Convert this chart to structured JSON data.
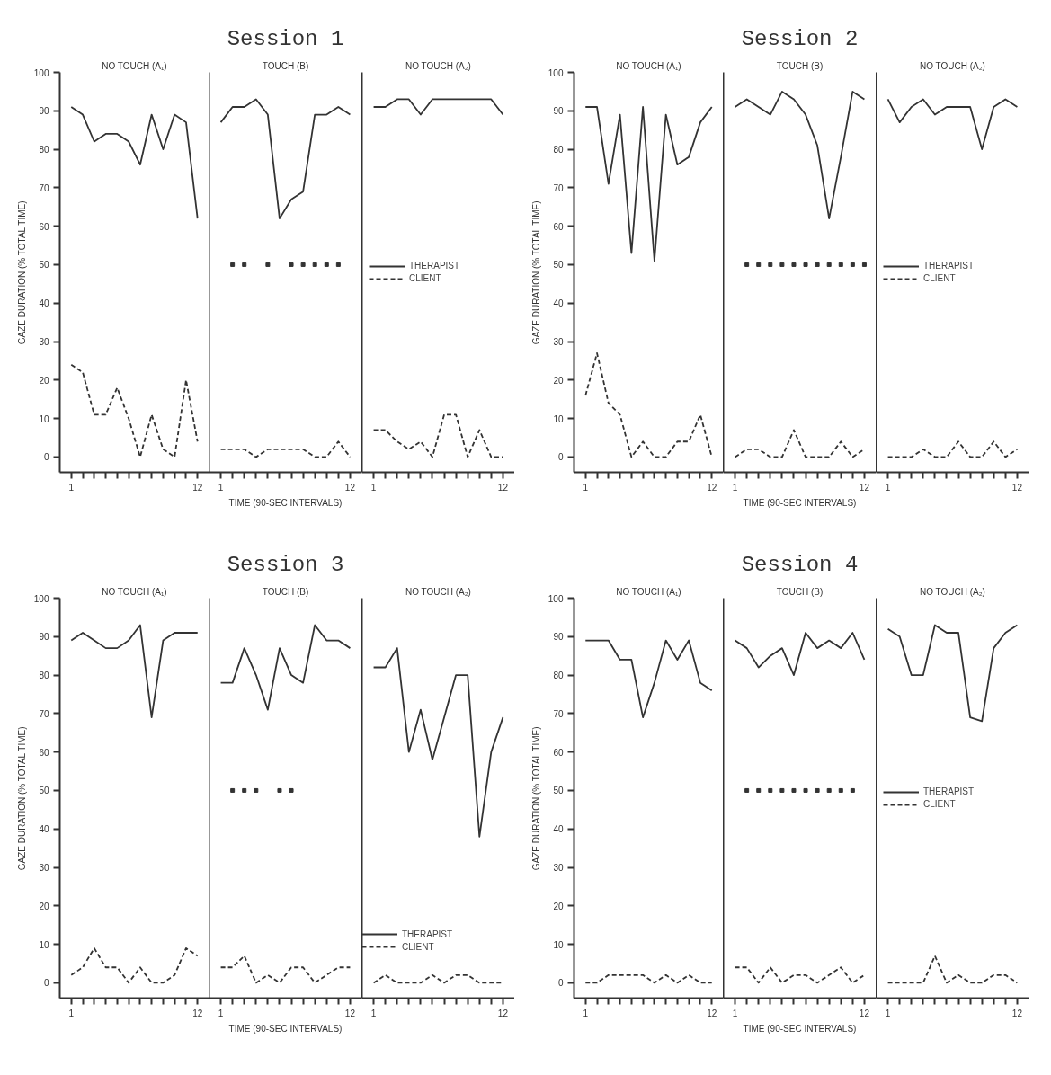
{
  "chart_data": [
    {
      "type": "line",
      "subtitle": "NO TOUCH (A₁)",
      "ylabel": "GAZE DURATION (% TOTAL TIME)",
      "xlim": [
        0,
        13
      ],
      "ylim": [
        -4,
        100
      ],
      "xticks": [
        1,
        {
          "value": 2,
          "label": null
        },
        {
          "value": 3,
          "label": null
        },
        {
          "value": 4,
          "label": null
        },
        {
          "value": 5,
          "label": null
        },
        {
          "value": 6,
          "label": null
        },
        {
          "value": 7,
          "label": null
        },
        {
          "value": 8,
          "label": null
        },
        {
          "value": 9,
          "label": null
        },
        {
          "value": 10,
          "label": null
        },
        {
          "value": 11,
          "label": null
        },
        12
      ],
      "yticks": [
        0,
        10,
        20,
        30,
        40,
        50,
        60,
        70,
        80,
        90,
        100
      ],
      "grid": false,
      "series": [
        {
          "color": "#333333",
          "line_style": "solid",
          "x": [
            1,
            2,
            3,
            4,
            5,
            6,
            7,
            8,
            9,
            10,
            11,
            12
          ],
          "values": [
            91,
            89,
            82,
            84,
            84,
            82,
            76,
            89,
            80,
            89,
            87,
            62
          ]
        },
        {
          "color": "#333333",
          "line_style": "dashed",
          "x": [
            1,
            2,
            3,
            4,
            5,
            6,
            7,
            8,
            9,
            10,
            11,
            12
          ],
          "values": [
            24,
            22,
            11,
            11,
            18,
            10,
            0,
            11,
            2,
            0,
            20,
            4
          ]
        }
      ]
    },
    {
      "type": "line",
      "title": "Session 1",
      "subtitle": "TOUCH (B)",
      "xlabel": "TIME (90-SEC INTERVALS)",
      "xlim": [
        0,
        13
      ],
      "ylim": [
        -4,
        100
      ],
      "xticks": [
        1,
        {
          "value": 2,
          "label": null
        },
        {
          "value": 3,
          "label": null
        },
        {
          "value": 4,
          "label": null
        },
        {
          "value": 5,
          "label": null
        },
        {
          "value": 6,
          "label": null
        },
        {
          "value": 7,
          "label": null
        },
        {
          "value": 8,
          "label": null
        },
        {
          "value": 9,
          "label": null
        },
        {
          "value": 10,
          "label": null
        },
        {
          "value": 11,
          "label": null
        },
        12
      ],
      "tick_labels": "x",
      "grid": false,
      "series": [
        {
          "color": "#333333",
          "line_style": "solid",
          "x": [
            1,
            2,
            3,
            4,
            5,
            6,
            7,
            8,
            9,
            10,
            11,
            12
          ],
          "values": [
            87,
            91,
            91,
            93,
            89,
            62,
            67,
            69,
            89,
            89,
            91,
            89
          ]
        },
        {
          "color": "#333333",
          "line_style": "dashed",
          "x": [
            1,
            2,
            3,
            4,
            5,
            6,
            7,
            8,
            9,
            10,
            11,
            12
          ],
          "values": [
            2,
            2,
            2,
            0,
            2,
            2,
            2,
            2,
            0,
            0,
            4,
            0
          ]
        },
        {
          "type": "scatter",
          "marker": "square",
          "color": "#333333",
          "x": [
            2,
            3,
            5,
            7,
            8,
            9,
            10,
            11
          ],
          "values": [
            50,
            50,
            50,
            50,
            50,
            50,
            50,
            50
          ]
        }
      ]
    },
    {
      "type": "line",
      "subtitle": "NO TOUCH (A₂)",
      "xlim": [
        0,
        13
      ],
      "ylim": [
        -4,
        100
      ],
      "xticks": [
        1,
        {
          "value": 2,
          "label": null
        },
        {
          "value": 3,
          "label": null
        },
        {
          "value": 4,
          "label": null
        },
        {
          "value": 5,
          "label": null
        },
        {
          "value": 6,
          "label": null
        },
        {
          "value": 7,
          "label": null
        },
        {
          "value": 8,
          "label": null
        },
        {
          "value": 9,
          "label": null
        },
        {
          "value": 10,
          "label": null
        },
        {
          "value": 11,
          "label": null
        },
        12
      ],
      "tick_labels": "x",
      "grid": false,
      "legend": "left",
      "series": [
        {
          "name": "THERAPIST",
          "color": "#333333",
          "line_style": "solid",
          "x": [
            1,
            2,
            3,
            4,
            5,
            6,
            7,
            8,
            9,
            10,
            11,
            12
          ],
          "values": [
            91,
            91,
            93,
            93,
            89,
            93,
            93,
            93,
            93,
            93,
            93,
            89
          ]
        },
        {
          "name": "CLIENT",
          "color": "#333333",
          "line_style": "dashed",
          "x": [
            1,
            2,
            3,
            4,
            5,
            6,
            7,
            8,
            9,
            10,
            11,
            12
          ],
          "values": [
            7,
            7,
            4,
            2,
            4,
            0,
            11,
            11,
            0,
            7,
            0,
            0
          ]
        }
      ]
    },
    {
      "type": "line",
      "subtitle": "NO TOUCH (A₁)",
      "ylabel": "GAZE DURATION (% TOTAL TIME)",
      "xlim": [
        0,
        13
      ],
      "ylim": [
        -4,
        100
      ],
      "xticks": [
        1,
        {
          "value": 2,
          "label": null
        },
        {
          "value": 3,
          "label": null
        },
        {
          "value": 4,
          "label": null
        },
        {
          "value": 5,
          "label": null
        },
        {
          "value": 6,
          "label": null
        },
        {
          "value": 7,
          "label": null
        },
        {
          "value": 8,
          "label": null
        },
        {
          "value": 9,
          "label": null
        },
        {
          "value": 10,
          "label": null
        },
        {
          "value": 11,
          "label": null
        },
        12
      ],
      "yticks": [
        0,
        10,
        20,
        30,
        40,
        50,
        60,
        70,
        80,
        90,
        100
      ],
      "grid": false,
      "series": [
        {
          "color": "#333333",
          "line_style": "solid",
          "x": [
            1,
            2,
            3,
            4,
            5,
            6,
            7,
            8,
            9,
            10,
            11,
            12
          ],
          "values": [
            91,
            91,
            71,
            89,
            53,
            91,
            51,
            89,
            76,
            78,
            87,
            91
          ]
        },
        {
          "color": "#333333",
          "line_style": "dashed",
          "x": [
            1,
            2,
            3,
            4,
            5,
            6,
            7,
            8,
            9,
            10,
            11,
            12
          ],
          "values": [
            16,
            27,
            14,
            11,
            0,
            4,
            0,
            0,
            4,
            4,
            11,
            0
          ]
        }
      ]
    },
    {
      "type": "line",
      "title": "Session 2",
      "subtitle": "TOUCH (B)",
      "xlabel": "TIME (90-SEC INTERVALS)",
      "xlim": [
        0,
        13
      ],
      "ylim": [
        -4,
        100
      ],
      "xticks": [
        1,
        {
          "value": 2,
          "label": null
        },
        {
          "value": 3,
          "label": null
        },
        {
          "value": 4,
          "label": null
        },
        {
          "value": 5,
          "label": null
        },
        {
          "value": 6,
          "label": null
        },
        {
          "value": 7,
          "label": null
        },
        {
          "value": 8,
          "label": null
        },
        {
          "value": 9,
          "label": null
        },
        {
          "value": 10,
          "label": null
        },
        {
          "value": 11,
          "label": null
        },
        12
      ],
      "tick_labels": "x",
      "grid": false,
      "series": [
        {
          "color": "#333333",
          "line_style": "solid",
          "x": [
            1,
            2,
            3,
            4,
            5,
            6,
            7,
            8,
            9,
            10,
            11,
            12
          ],
          "values": [
            91,
            93,
            91,
            89,
            95,
            93,
            89,
            81,
            62,
            78,
            95,
            93
          ]
        },
        {
          "color": "#333333",
          "line_style": "dashed",
          "x": [
            1,
            2,
            3,
            4,
            5,
            6,
            7,
            8,
            9,
            10,
            11,
            12
          ],
          "values": [
            0,
            2,
            2,
            0,
            0,
            7,
            0,
            0,
            0,
            4,
            0,
            2
          ]
        },
        {
          "type": "scatter",
          "marker": "square",
          "color": "#333333",
          "x": [
            2,
            3,
            4,
            5,
            6,
            7,
            8,
            9,
            10,
            11,
            12
          ],
          "values": [
            50,
            50,
            50,
            50,
            50,
            50,
            50,
            50,
            50,
            50,
            50
          ]
        }
      ]
    },
    {
      "type": "line",
      "subtitle": "NO TOUCH (A₂)",
      "xlim": [
        0,
        13
      ],
      "ylim": [
        -4,
        100
      ],
      "xticks": [
        1,
        {
          "value": 2,
          "label": null
        },
        {
          "value": 3,
          "label": null
        },
        {
          "value": 4,
          "label": null
        },
        {
          "value": 5,
          "label": null
        },
        {
          "value": 6,
          "label": null
        },
        {
          "value": 7,
          "label": null
        },
        {
          "value": 8,
          "label": null
        },
        {
          "value": 9,
          "label": null
        },
        {
          "value": 10,
          "label": null
        },
        {
          "value": 11,
          "label": null
        },
        12
      ],
      "tick_labels": "x",
      "grid": false,
      "legend": "left",
      "series": [
        {
          "name": "THERAPIST",
          "color": "#333333",
          "line_style": "solid",
          "x": [
            1,
            2,
            3,
            4,
            5,
            6,
            7,
            8,
            9,
            10,
            11,
            12
          ],
          "values": [
            93,
            87,
            91,
            93,
            89,
            91,
            91,
            91,
            80,
            91,
            93,
            91
          ]
        },
        {
          "name": "CLIENT",
          "color": "#333333",
          "line_style": "dashed",
          "x": [
            1,
            2,
            3,
            4,
            5,
            6,
            7,
            8,
            9,
            10,
            11,
            12
          ],
          "values": [
            0,
            0,
            0,
            2,
            0,
            0,
            4,
            0,
            0,
            4,
            0,
            2
          ]
        }
      ]
    },
    {
      "type": "line",
      "subtitle": "NO TOUCH (A₁)",
      "ylabel": "GAZE DURATION (% TOTAL TIME)",
      "xlim": [
        0,
        13
      ],
      "ylim": [
        -4,
        100
      ],
      "xticks": [
        1,
        {
          "value": 2,
          "label": null
        },
        {
          "value": 3,
          "label": null
        },
        {
          "value": 4,
          "label": null
        },
        {
          "value": 5,
          "label": null
        },
        {
          "value": 6,
          "label": null
        },
        {
          "value": 7,
          "label": null
        },
        {
          "value": 8,
          "label": null
        },
        {
          "value": 9,
          "label": null
        },
        {
          "value": 10,
          "label": null
        },
        {
          "value": 11,
          "label": null
        },
        12
      ],
      "yticks": [
        0,
        10,
        20,
        30,
        40,
        50,
        60,
        70,
        80,
        90,
        100
      ],
      "grid": false,
      "series": [
        {
          "color": "#333333",
          "line_style": "solid",
          "x": [
            1,
            2,
            3,
            4,
            5,
            6,
            7,
            8,
            9,
            10,
            11,
            12
          ],
          "values": [
            89,
            91,
            89,
            87,
            87,
            89,
            93,
            69,
            89,
            91,
            91,
            91
          ]
        },
        {
          "color": "#333333",
          "line_style": "dashed",
          "x": [
            1,
            2,
            3,
            4,
            5,
            6,
            7,
            8,
            9,
            10,
            11,
            12
          ],
          "values": [
            2,
            4,
            9,
            4,
            4,
            0,
            4,
            0,
            0,
            2,
            9,
            7
          ]
        }
      ]
    },
    {
      "type": "line",
      "title": "Session 3",
      "subtitle": "TOUCH (B)",
      "xlabel": "TIME (90-SEC INTERVALS)",
      "xlim": [
        0,
        13
      ],
      "ylim": [
        -4,
        100
      ],
      "xticks": [
        1,
        {
          "value": 2,
          "label": null
        },
        {
          "value": 3,
          "label": null
        },
        {
          "value": 4,
          "label": null
        },
        {
          "value": 5,
          "label": null
        },
        {
          "value": 6,
          "label": null
        },
        {
          "value": 7,
          "label": null
        },
        {
          "value": 8,
          "label": null
        },
        {
          "value": 9,
          "label": null
        },
        {
          "value": 10,
          "label": null
        },
        {
          "value": 11,
          "label": null
        },
        12
      ],
      "tick_labels": "x",
      "grid": false,
      "series": [
        {
          "color": "#333333",
          "line_style": "solid",
          "x": [
            1,
            2,
            3,
            4,
            5,
            6,
            7,
            8,
            9,
            10,
            11,
            12
          ],
          "values": [
            78,
            78,
            87,
            80,
            71,
            87,
            80,
            78,
            93,
            89,
            89,
            87
          ]
        },
        {
          "color": "#333333",
          "line_style": "dashed",
          "x": [
            1,
            2,
            3,
            4,
            5,
            6,
            7,
            8,
            9,
            10,
            11,
            12
          ],
          "values": [
            4,
            4,
            7,
            0,
            2,
            0,
            4,
            4,
            0,
            2,
            4,
            4
          ]
        },
        {
          "type": "scatter",
          "marker": "square",
          "color": "#333333",
          "x": [
            2,
            3,
            4,
            6,
            7
          ],
          "values": [
            50,
            50,
            50,
            50,
            50
          ]
        }
      ]
    },
    {
      "type": "line",
      "subtitle": "NO TOUCH (A₂)",
      "xlim": [
        0,
        13
      ],
      "ylim": [
        -4,
        100
      ],
      "xticks": [
        1,
        {
          "value": 2,
          "label": null
        },
        {
          "value": 3,
          "label": null
        },
        {
          "value": 4,
          "label": null
        },
        {
          "value": 5,
          "label": null
        },
        {
          "value": 6,
          "label": null
        },
        {
          "value": 7,
          "label": null
        },
        {
          "value": 8,
          "label": null
        },
        {
          "value": 9,
          "label": null
        },
        {
          "value": 10,
          "label": null
        },
        {
          "value": 11,
          "label": null
        },
        12
      ],
      "tick_labels": "x",
      "grid": false,
      "legend": "bottom left",
      "series": [
        {
          "name": "THERAPIST",
          "color": "#333333",
          "line_style": "solid",
          "x": [
            1,
            2,
            3,
            4,
            5,
            6,
            7,
            8,
            9,
            10,
            11,
            12
          ],
          "values": [
            82,
            82,
            87,
            60,
            71,
            58,
            69,
            80,
            80,
            38,
            60,
            69
          ]
        },
        {
          "name": "CLIENT",
          "color": "#333333",
          "line_style": "dashed",
          "x": [
            1,
            2,
            3,
            4,
            5,
            6,
            7,
            8,
            9,
            10,
            11,
            12
          ],
          "values": [
            0,
            2,
            0,
            0,
            0,
            2,
            0,
            2,
            2,
            0,
            0,
            0
          ]
        }
      ]
    },
    {
      "type": "line",
      "subtitle": "NO TOUCH (A₁)",
      "ylabel": "GAZE DURATION (% TOTAL TIME)",
      "xlim": [
        0,
        13
      ],
      "ylim": [
        -4,
        100
      ],
      "xticks": [
        1,
        {
          "value": 2,
          "label": null
        },
        {
          "value": 3,
          "label": null
        },
        {
          "value": 4,
          "label": null
        },
        {
          "value": 5,
          "label": null
        },
        {
          "value": 6,
          "label": null
        },
        {
          "value": 7,
          "label": null
        },
        {
          "value": 8,
          "label": null
        },
        {
          "value": 9,
          "label": null
        },
        {
          "value": 10,
          "label": null
        },
        {
          "value": 11,
          "label": null
        },
        12
      ],
      "yticks": [
        0,
        10,
        20,
        30,
        40,
        50,
        60,
        70,
        80,
        90,
        100
      ],
      "grid": false,
      "series": [
        {
          "color": "#333333",
          "line_style": "solid",
          "x": [
            1,
            2,
            3,
            4,
            5,
            6,
            7,
            8,
            9,
            10,
            11,
            12
          ],
          "values": [
            89,
            89,
            89,
            84,
            84,
            69,
            78,
            89,
            84,
            89,
            78,
            76
          ]
        },
        {
          "color": "#333333",
          "line_style": "dashed",
          "x": [
            1,
            2,
            3,
            4,
            5,
            6,
            7,
            8,
            9,
            10,
            11,
            12
          ],
          "values": [
            0,
            0,
            2,
            2,
            2,
            2,
            0,
            2,
            0,
            2,
            0,
            0
          ]
        }
      ]
    },
    {
      "type": "line",
      "title": "Session 4",
      "subtitle": "TOUCH (B)",
      "xlabel": "TIME (90-SEC INTERVALS)",
      "xlim": [
        0,
        13
      ],
      "ylim": [
        -4,
        100
      ],
      "xticks": [
        1,
        {
          "value": 2,
          "label": null
        },
        {
          "value": 3,
          "label": null
        },
        {
          "value": 4,
          "label": null
        },
        {
          "value": 5,
          "label": null
        },
        {
          "value": 6,
          "label": null
        },
        {
          "value": 7,
          "label": null
        },
        {
          "value": 8,
          "label": null
        },
        {
          "value": 9,
          "label": null
        },
        {
          "value": 10,
          "label": null
        },
        {
          "value": 11,
          "label": null
        },
        12
      ],
      "tick_labels": "x",
      "grid": false,
      "series": [
        {
          "color": "#333333",
          "line_style": "solid",
          "x": [
            1,
            2,
            3,
            4,
            5,
            6,
            7,
            8,
            9,
            10,
            11,
            12
          ],
          "values": [
            89,
            87,
            82,
            85,
            87,
            80,
            91,
            87,
            89,
            87,
            91,
            84
          ]
        },
        {
          "color": "#333333",
          "line_style": "dashed",
          "x": [
            1,
            2,
            3,
            4,
            5,
            6,
            7,
            8,
            9,
            10,
            11,
            12
          ],
          "values": [
            4,
            4,
            0,
            4,
            0,
            2,
            2,
            0,
            2,
            4,
            0,
            2
          ]
        },
        {
          "type": "scatter",
          "marker": "square",
          "color": "#333333",
          "x": [
            2,
            3,
            4,
            5,
            6,
            7,
            8,
            9,
            10,
            11
          ],
          "values": [
            50,
            50,
            50,
            50,
            50,
            50,
            50,
            50,
            50,
            50
          ]
        }
      ]
    },
    {
      "type": "line",
      "subtitle": "NO TOUCH (A₂)",
      "xlim": [
        0,
        13
      ],
      "ylim": [
        -4,
        100
      ],
      "xticks": [
        1,
        {
          "value": 2,
          "label": null
        },
        {
          "value": 3,
          "label": null
        },
        {
          "value": 4,
          "label": null
        },
        {
          "value": 5,
          "label": null
        },
        {
          "value": 6,
          "label": null
        },
        {
          "value": 7,
          "label": null
        },
        {
          "value": 8,
          "label": null
        },
        {
          "value": 9,
          "label": null
        },
        {
          "value": 10,
          "label": null
        },
        {
          "value": 11,
          "label": null
        },
        12
      ],
      "tick_labels": "x",
      "grid": false,
      "legend": "left",
      "series": [
        {
          "name": "THERAPIST",
          "color": "#333333",
          "line_style": "solid",
          "x": [
            1,
            2,
            3,
            4,
            5,
            6,
            7,
            8,
            9,
            10,
            11,
            12
          ],
          "values": [
            92,
            90,
            80,
            80,
            93,
            91,
            91,
            69,
            68,
            87,
            91,
            93
          ]
        },
        {
          "name": "CLIENT",
          "color": "#333333",
          "line_style": "dashed",
          "x": [
            1,
            2,
            3,
            4,
            5,
            6,
            7,
            8,
            9,
            10,
            11,
            12
          ],
          "values": [
            0,
            0,
            0,
            0,
            7,
            0,
            2,
            0,
            0,
            2,
            2,
            0
          ]
        }
      ]
    }
  ]
}
